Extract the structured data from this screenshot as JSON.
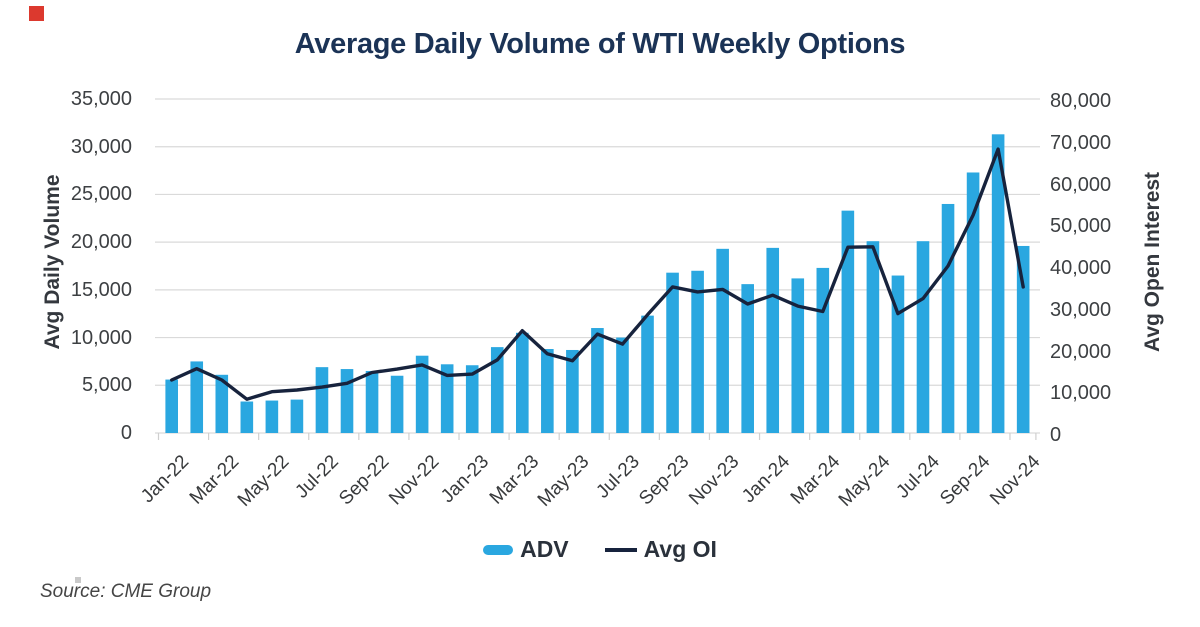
{
  "page": {
    "source_note": "Source: CME Group",
    "brand_mark_color": "#dc392e"
  },
  "chart_data": {
    "type": "bar+line",
    "title": "Average Daily Volume of WTI Weekly Options",
    "grid": "horizontal",
    "legend_position": "bottom-center",
    "categories": [
      "Jan-22",
      "Feb-22",
      "Mar-22",
      "Apr-22",
      "May-22",
      "Jun-22",
      "Jul-22",
      "Aug-22",
      "Sep-22",
      "Oct-22",
      "Nov-22",
      "Dec-22",
      "Jan-23",
      "Feb-23",
      "Mar-23",
      "Apr-23",
      "May-23",
      "Jun-23",
      "Jul-23",
      "Aug-23",
      "Sep-23",
      "Oct-23",
      "Nov-23",
      "Dec-23",
      "Jan-24",
      "Feb-24",
      "Mar-24",
      "Apr-24",
      "May-24",
      "Jun-24",
      "Jul-24",
      "Aug-24",
      "Sep-24",
      "Oct-24",
      "Nov-24"
    ],
    "x_tick_labels": [
      "Jan-22",
      "Mar-22",
      "May-22",
      "Jul-22",
      "Sep-22",
      "Nov-22",
      "Jan-23",
      "Mar-23",
      "May-23",
      "Jul-23",
      "Sep-23",
      "Nov-23",
      "Jan-24",
      "Mar-24",
      "May-24",
      "Jul-24",
      "Sep-24",
      "Nov-24"
    ],
    "series": [
      {
        "name": "ADV",
        "type": "bar",
        "axis": "left",
        "color": "#2aa7e0",
        "values": [
          5600,
          7500,
          6100,
          3300,
          3400,
          3500,
          6900,
          6700,
          6500,
          6000,
          8100,
          7200,
          7100,
          9000,
          10500,
          8800,
          8700,
          11000,
          10000,
          12300,
          16800,
          17000,
          19300,
          15600,
          19400,
          16200,
          17300,
          23300,
          20100,
          16500,
          20100,
          24000,
          27300,
          31300,
          19600
        ]
      },
      {
        "name": "Avg OI",
        "type": "line",
        "axis": "right",
        "color": "#17233d",
        "values": [
          12700,
          15400,
          12700,
          8100,
          9900,
          10300,
          11000,
          11900,
          14500,
          15300,
          16300,
          13800,
          14100,
          17500,
          24500,
          19000,
          17300,
          23700,
          21300,
          28300,
          35000,
          33800,
          34400,
          30900,
          33000,
          30400,
          29100,
          44500,
          44600,
          28600,
          32200,
          40000,
          52200,
          68000,
          35000
        ]
      }
    ],
    "left_axis": {
      "label": "Avg Daily Volume",
      "min": 0,
      "max": 35000,
      "tick_step": 5000,
      "tick_labels": [
        "0",
        "5,000",
        "10,000",
        "15,000",
        "20,000",
        "25,000",
        "30,000",
        "35,000"
      ]
    },
    "right_axis": {
      "label": "Avg Open Interest",
      "min": 0,
      "max": 80000,
      "tick_step": 10000,
      "tick_labels": [
        "0",
        "10,000",
        "20,000",
        "30,000",
        "40,000",
        "50,000",
        "60,000",
        "70,000",
        "80,000"
      ]
    }
  }
}
